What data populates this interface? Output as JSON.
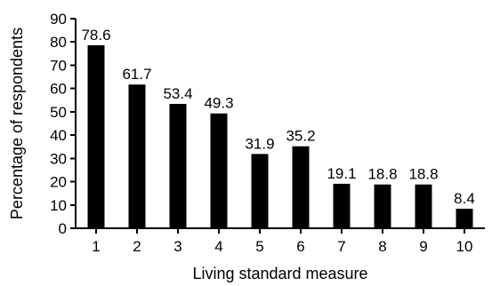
{
  "chart_data": {
    "type": "bar",
    "categories": [
      "1",
      "2",
      "3",
      "4",
      "5",
      "6",
      "7",
      "8",
      "9",
      "10"
    ],
    "values": [
      78.6,
      61.7,
      53.4,
      49.3,
      31.9,
      35.2,
      19.1,
      18.8,
      18.8,
      8.4
    ],
    "value_labels": [
      "78.6",
      "61.7",
      "53.4",
      "49.3",
      "31.9",
      "35.2",
      "19.1",
      "18.8",
      "18.8",
      "8.4"
    ],
    "title": "",
    "xlabel": "Living standard measure",
    "ylabel": "Percentage of respondents",
    "ylim": [
      0,
      90
    ],
    "yticks": [
      0,
      10,
      20,
      30,
      40,
      50,
      60,
      70,
      80,
      90
    ],
    "ytick_labels": [
      "0",
      "10",
      "20",
      "30",
      "40",
      "50",
      "60",
      "70",
      "80",
      "90"
    ],
    "bar_color": "#000000",
    "grid": false,
    "legend": "none"
  }
}
